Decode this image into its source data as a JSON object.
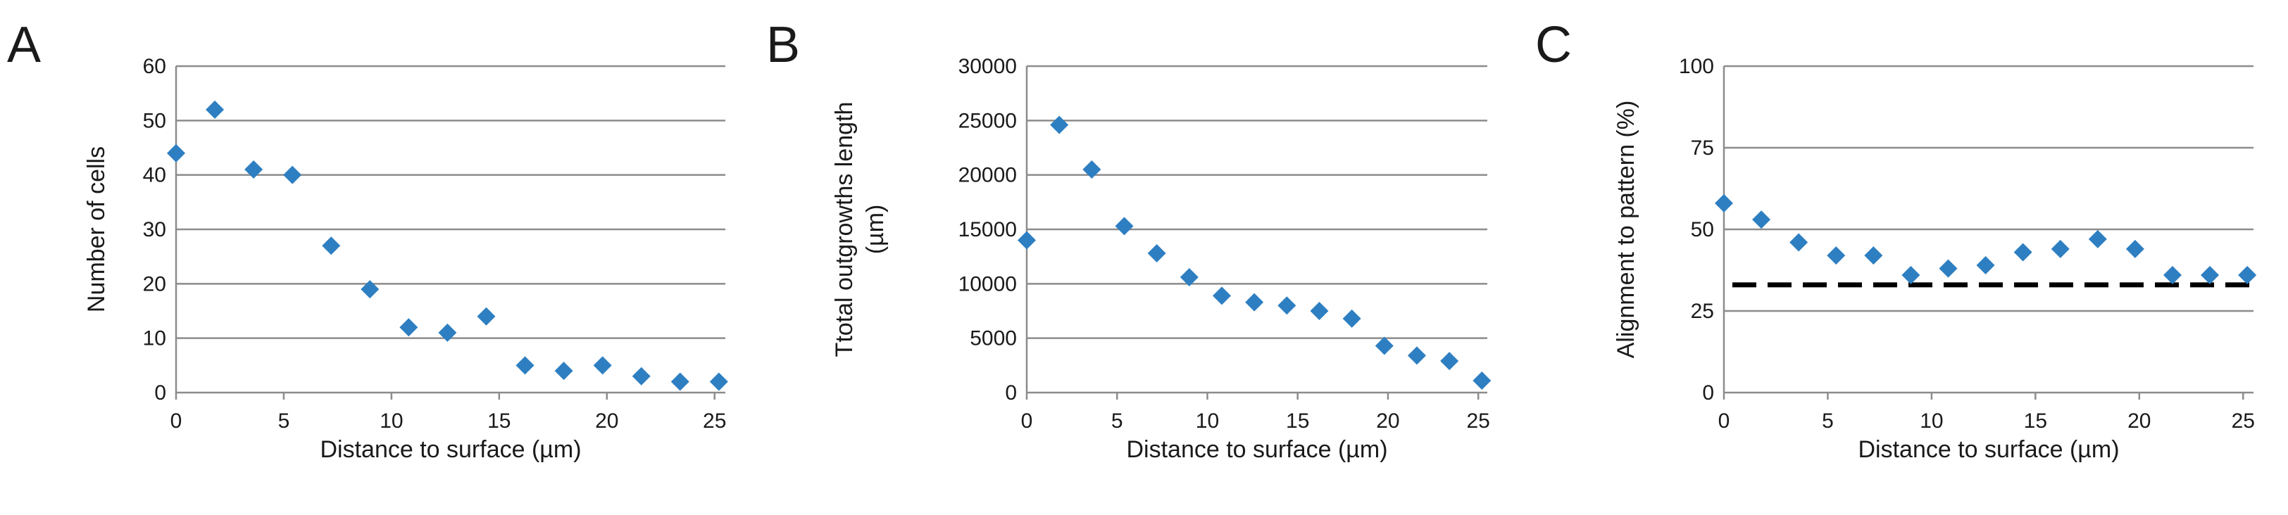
{
  "chart_data": [
    {
      "type": "scatter",
      "panel": "A",
      "xlabel": "Distance to surface (µm)",
      "ylabel": "Number of cells",
      "xlim": [
        0,
        25.5
      ],
      "ylim": [
        0,
        60
      ],
      "xticks": [
        0,
        5,
        10,
        15,
        20,
        25
      ],
      "yticks": [
        0,
        10,
        20,
        30,
        40,
        50,
        60
      ],
      "grid": "horizontal",
      "marker_color": "#2E7FC1",
      "series": [
        {
          "x": [
            0,
            1.8,
            3.6,
            5.4,
            7.2,
            9.0,
            10.8,
            12.6,
            14.4,
            16.2,
            18.0,
            19.8,
            21.6,
            23.4,
            25.2
          ],
          "y": [
            44,
            52,
            41,
            40,
            27,
            19,
            12,
            11,
            14,
            5,
            4,
            5,
            3,
            2,
            2
          ]
        }
      ]
    },
    {
      "type": "scatter",
      "panel": "B",
      "xlabel": "Distance to surface (µm)",
      "ylabel": "Ttotal outgrowths length (µm)",
      "ylabel_lines": [
        "Ttotal outgrowths length",
        "(µm)"
      ],
      "xlim": [
        0,
        25.5
      ],
      "ylim": [
        0,
        30000
      ],
      "xticks": [
        0,
        5,
        10,
        15,
        20,
        25
      ],
      "yticks": [
        0,
        5000,
        10000,
        15000,
        20000,
        25000,
        30000
      ],
      "grid": "horizontal",
      "marker_color": "#2E7FC1",
      "series": [
        {
          "x": [
            0,
            1.8,
            3.6,
            5.4,
            7.2,
            9.0,
            10.8,
            12.6,
            14.4,
            16.2,
            18.0,
            19.8,
            21.6,
            23.4,
            25.2
          ],
          "y": [
            14000,
            24600,
            20500,
            15300,
            12800,
            10600,
            8900,
            8300,
            8000,
            7500,
            6800,
            4300,
            3400,
            2900,
            1100
          ]
        }
      ]
    },
    {
      "type": "scatter",
      "panel": "C",
      "xlabel": "Distance to surface (µm)",
      "ylabel": "Alignment to pattern (%)",
      "xlim": [
        0,
        25.5
      ],
      "ylim": [
        0,
        100
      ],
      "xticks": [
        0,
        5,
        10,
        15,
        20,
        25
      ],
      "yticks": [
        0,
        25,
        50,
        75,
        100
      ],
      "grid": "horizontal",
      "marker_color": "#2E7FC1",
      "reference_line": {
        "y": 33,
        "style": "dashed",
        "color": "#000000"
      },
      "series": [
        {
          "x": [
            0,
            1.8,
            3.6,
            5.4,
            7.2,
            9.0,
            10.8,
            12.6,
            14.4,
            16.2,
            18.0,
            19.8,
            21.6,
            23.4,
            25.2
          ],
          "y": [
            58,
            53,
            46,
            42,
            42,
            36,
            38,
            39,
            43,
            44,
            47,
            44,
            36,
            36,
            36
          ]
        }
      ]
    }
  ]
}
